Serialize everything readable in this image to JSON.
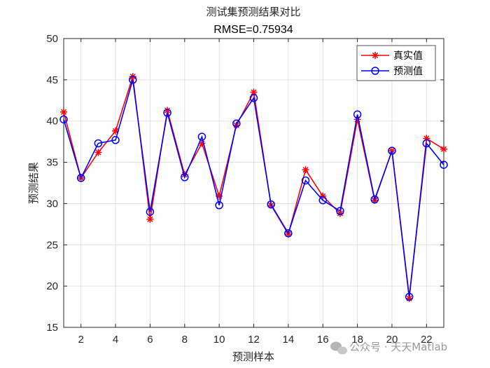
{
  "chart_data": {
    "type": "line",
    "title": "测试集预测结果对比",
    "subtitle": "RMSE=0.75934",
    "xlabel": "预测样本",
    "ylabel": "预测结果",
    "xlim": [
      1,
      23
    ],
    "ylim": [
      15,
      50
    ],
    "x_ticks": [
      2,
      4,
      6,
      8,
      10,
      12,
      14,
      16,
      18,
      20,
      22
    ],
    "y_ticks": [
      15,
      20,
      25,
      30,
      35,
      40,
      45,
      50
    ],
    "grid": true,
    "legend_position": "top-right",
    "x": [
      1,
      2,
      3,
      4,
      5,
      6,
      7,
      8,
      9,
      10,
      11,
      12,
      13,
      14,
      15,
      16,
      17,
      18,
      19,
      20,
      21,
      22,
      23
    ],
    "series": [
      {
        "name": "真实值",
        "color": "#ff0000",
        "marker": "asterisk",
        "values": [
          41.1,
          33.1,
          36.2,
          38.8,
          45.4,
          28.1,
          41.3,
          33.5,
          37.3,
          30.9,
          39.5,
          43.5,
          29.8,
          26.3,
          34.1,
          30.9,
          28.8,
          40.2,
          30.4,
          36.4,
          18.5,
          37.9,
          36.6
        ]
      },
      {
        "name": "预测值",
        "color": "#0000ff",
        "marker": "circle",
        "values": [
          40.2,
          33.1,
          37.3,
          37.7,
          45.0,
          29.0,
          41.0,
          33.2,
          38.1,
          29.8,
          39.7,
          42.8,
          29.9,
          26.4,
          32.8,
          30.4,
          29.1,
          40.8,
          30.5,
          36.4,
          18.7,
          37.3,
          34.7
        ]
      }
    ]
  },
  "watermark": {
    "text": "公众号 · 天天Matlab",
    "icon": "wechat-icon"
  }
}
